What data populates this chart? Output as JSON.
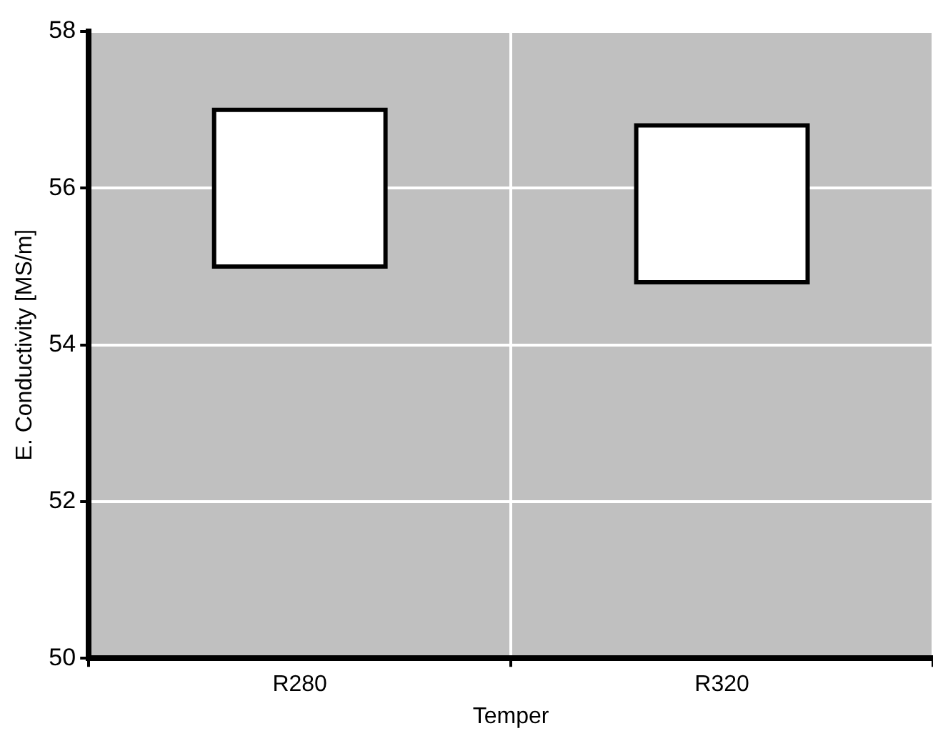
{
  "chart_data": {
    "type": "bar",
    "xlabel": "Temper",
    "ylabel": "E. Conductivity [MS/m]",
    "categories": [
      "R280",
      "R320"
    ],
    "base": [
      55,
      54.8
    ],
    "values": [
      2,
      2
    ],
    "color": "#ffffff",
    "ylim": [
      50,
      58
    ],
    "yticks": [
      50,
      52,
      54,
      56,
      58
    ],
    "grid": true
  }
}
